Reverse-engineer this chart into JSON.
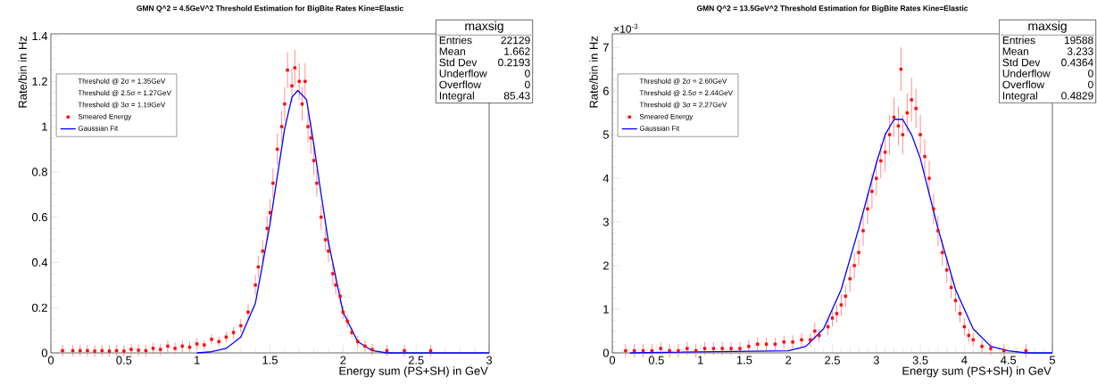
{
  "chart_data": [
    {
      "type": "scatter",
      "title": "GMN   Q^2 = 4.5GeV^2   Threshold Estimation for BigBite Rates   Kine=Elastic",
      "xlabel": "Energy sum (PS+SH) in GeV",
      "ylabel": "Rate/bin in Hz",
      "xlim": [
        0,
        3
      ],
      "ylim": [
        0,
        1.41
      ],
      "xticks": [
        0,
        0.5,
        1,
        1.5,
        2,
        2.5,
        3
      ],
      "yticks": [
        0,
        0.2,
        0.4,
        0.6,
        0.8,
        1,
        1.2,
        1.4
      ],
      "legend": "top left",
      "annotations": [
        "Threshold @ 2σ = 1.35GeV",
        "Threshold @ 2.5σ = 1.27GeV",
        "Threshold @ 3σ = 1.19GeV",
        "maxsig",
        "Entries",
        "22129",
        "Mean",
        "1.662",
        "Std Dev",
        "0.2193",
        "Underflow",
        "0",
        "Overflow",
        "0",
        "Integral",
        "85.43"
      ],
      "series": [
        {
          "name": "Smeared Energy",
          "marker": "square",
          "color": "#ff0000",
          "x": [
            0.08,
            0.15,
            0.2,
            0.25,
            0.3,
            0.35,
            0.4,
            0.45,
            0.5,
            0.55,
            0.6,
            0.65,
            0.7,
            0.75,
            0.8,
            0.85,
            0.9,
            0.95,
            1.0,
            1.05,
            1.1,
            1.15,
            1.2,
            1.25,
            1.3,
            1.35,
            1.4,
            1.42,
            1.45,
            1.48,
            1.5,
            1.52,
            1.55,
            1.58,
            1.6,
            1.62,
            1.65,
            1.67,
            1.7,
            1.72,
            1.74,
            1.76,
            1.78,
            1.8,
            1.82,
            1.85,
            1.88,
            1.9,
            1.93,
            1.95,
            1.98,
            2.0,
            2.03,
            2.06,
            2.1,
            2.15,
            2.2,
            2.3,
            2.42,
            2.6
          ],
          "values": [
            0.01,
            0.01,
            0.01,
            0.01,
            0.008,
            0.01,
            0.008,
            0.01,
            0.008,
            0.015,
            0.012,
            0.01,
            0.02,
            0.015,
            0.03,
            0.02,
            0.03,
            0.025,
            0.04,
            0.035,
            0.06,
            0.05,
            0.07,
            0.09,
            0.12,
            0.18,
            0.3,
            0.38,
            0.45,
            0.55,
            0.62,
            0.75,
            0.9,
            1.0,
            1.1,
            1.25,
            1.18,
            1.26,
            1.2,
            1.1,
            1.2,
            1.0,
            0.95,
            0.85,
            0.75,
            0.6,
            0.5,
            0.45,
            0.35,
            0.3,
            0.25,
            0.18,
            0.14,
            0.09,
            0.05,
            0.03,
            0.015,
            0.01,
            0.01,
            0.01
          ],
          "errors": [
            0.025,
            0.025,
            0.025,
            0.025,
            0.025,
            0.025,
            0.025,
            0.025,
            0.025,
            0.025,
            0.025,
            0.025,
            0.025,
            0.025,
            0.025,
            0.025,
            0.025,
            0.025,
            0.025,
            0.02,
            0.022,
            0.021,
            0.024,
            0.026,
            0.03,
            0.035,
            0.045,
            0.05,
            0.05,
            0.055,
            0.06,
            0.065,
            0.07,
            0.07,
            0.075,
            0.08,
            0.075,
            0.08,
            0.08,
            0.075,
            0.08,
            0.07,
            0.07,
            0.065,
            0.06,
            0.055,
            0.05,
            0.05,
            0.045,
            0.04,
            0.035,
            0.03,
            0.028,
            0.022,
            0.025,
            0.025,
            0.025,
            0.025,
            0.025,
            0.025
          ]
        },
        {
          "name": "Gaussian Fit",
          "type": "line",
          "color": "#0000ff",
          "x": [
            1.0,
            1.1,
            1.2,
            1.3,
            1.4,
            1.5,
            1.55,
            1.6,
            1.65,
            1.69,
            1.75,
            1.8,
            1.85,
            1.9,
            2.0,
            2.1,
            2.2,
            2.3,
            2.5,
            3.0
          ],
          "values": [
            0,
            0.005,
            0.02,
            0.07,
            0.22,
            0.57,
            0.78,
            0.99,
            1.13,
            1.16,
            1.12,
            0.92,
            0.7,
            0.49,
            0.18,
            0.05,
            0.01,
            0,
            0,
            0
          ]
        }
      ]
    },
    {
      "type": "scatter",
      "title": "GMN   Q^2 = 13.5GeV^2   Threshold Estimation for BigBite Rates   Kine=Elastic",
      "xlabel": "Energy sum (PS+SH) in GeV",
      "ylabel": "Rate/bin in Hz",
      "xlim": [
        0,
        5
      ],
      "ylim": [
        0,
        7.31
      ],
      "xticks": [
        0,
        0.5,
        1,
        1.5,
        2,
        2.5,
        3,
        3.5,
        4,
        4.5,
        5
      ],
      "yticks": [
        0,
        1,
        2,
        3,
        4,
        5,
        6,
        7
      ],
      "legend": "top left",
      "annotations": [
        "Threshold @ 2σ = 2.60GeV",
        "Threshold @ 2.5σ = 2.44GeV",
        "Threshold @ 3σ = 2.27GeV",
        "maxsig",
        "Entries",
        "19588",
        "Mean",
        "3.233",
        "Std Dev",
        "0.4364",
        "Underflow",
        "0",
        "Overflow",
        "0",
        "Integral",
        "0.4829",
        "×10$^{-3}$"
      ],
      "series": [
        {
          "name": "Smeared Energy",
          "marker": "square",
          "color": "#ff0000",
          "x": [
            0.15,
            0.25,
            0.35,
            0.45,
            0.55,
            0.65,
            0.75,
            0.85,
            0.95,
            1.05,
            1.15,
            1.25,
            1.35,
            1.45,
            1.55,
            1.65,
            1.75,
            1.85,
            1.95,
            2.05,
            2.15,
            2.25,
            2.3,
            2.35,
            2.45,
            2.5,
            2.55,
            2.6,
            2.65,
            2.7,
            2.75,
            2.8,
            2.85,
            2.9,
            2.95,
            3.0,
            3.05,
            3.1,
            3.15,
            3.2,
            3.25,
            3.28,
            3.3,
            3.35,
            3.4,
            3.45,
            3.5,
            3.55,
            3.6,
            3.65,
            3.7,
            3.75,
            3.8,
            3.85,
            3.9,
            3.95,
            4.0,
            4.05,
            4.1,
            4.2,
            4.3,
            4.45,
            4.7
          ],
          "values": [
            0.05,
            0.05,
            0.05,
            0.05,
            0.1,
            0.05,
            0.05,
            0.1,
            0.05,
            0.1,
            0.1,
            0.1,
            0.1,
            0.1,
            0.15,
            0.2,
            0.2,
            0.2,
            0.25,
            0.25,
            0.3,
            0.3,
            0.5,
            0.4,
            0.6,
            0.8,
            0.9,
            1.1,
            1.3,
            1.7,
            2.0,
            2.3,
            2.8,
            3.3,
            3.7,
            4.0,
            4.4,
            4.6,
            5.0,
            5.4,
            5.2,
            6.5,
            5.0,
            5.5,
            5.8,
            5.6,
            5.0,
            4.5,
            4.0,
            3.3,
            2.8,
            2.3,
            1.9,
            1.5,
            1.2,
            0.9,
            0.6,
            0.4,
            0.3,
            0.15,
            0.1,
            0.05,
            0.05
          ],
          "errors": [
            0.15,
            0.15,
            0.15,
            0.15,
            0.15,
            0.15,
            0.15,
            0.15,
            0.15,
            0.15,
            0.15,
            0.15,
            0.15,
            0.15,
            0.15,
            0.15,
            0.15,
            0.15,
            0.15,
            0.15,
            0.15,
            0.15,
            0.2,
            0.15,
            0.2,
            0.2,
            0.2,
            0.25,
            0.25,
            0.3,
            0.3,
            0.3,
            0.35,
            0.35,
            0.4,
            0.4,
            0.4,
            0.45,
            0.45,
            0.45,
            0.45,
            0.5,
            0.45,
            0.45,
            0.5,
            0.45,
            0.45,
            0.4,
            0.4,
            0.35,
            0.35,
            0.3,
            0.3,
            0.25,
            0.25,
            0.2,
            0.2,
            0.15,
            0.15,
            0.15,
            0.15,
            0.15,
            0.15
          ]
        },
        {
          "name": "Gaussian Fit",
          "type": "line",
          "color": "#0000ff",
          "x": [
            0.2,
            2.0,
            2.2,
            2.4,
            2.6,
            2.8,
            3.0,
            3.1,
            3.2,
            3.25,
            3.3,
            3.4,
            3.5,
            3.7,
            3.9,
            4.1,
            4.3,
            4.5,
            4.7,
            5.0
          ],
          "values": [
            0,
            0.05,
            0.15,
            0.55,
            1.45,
            2.85,
            4.35,
            5.0,
            5.35,
            5.35,
            5.35,
            5.0,
            4.45,
            2.85,
            1.45,
            0.55,
            0.15,
            0.05,
            0,
            0
          ]
        }
      ]
    }
  ]
}
